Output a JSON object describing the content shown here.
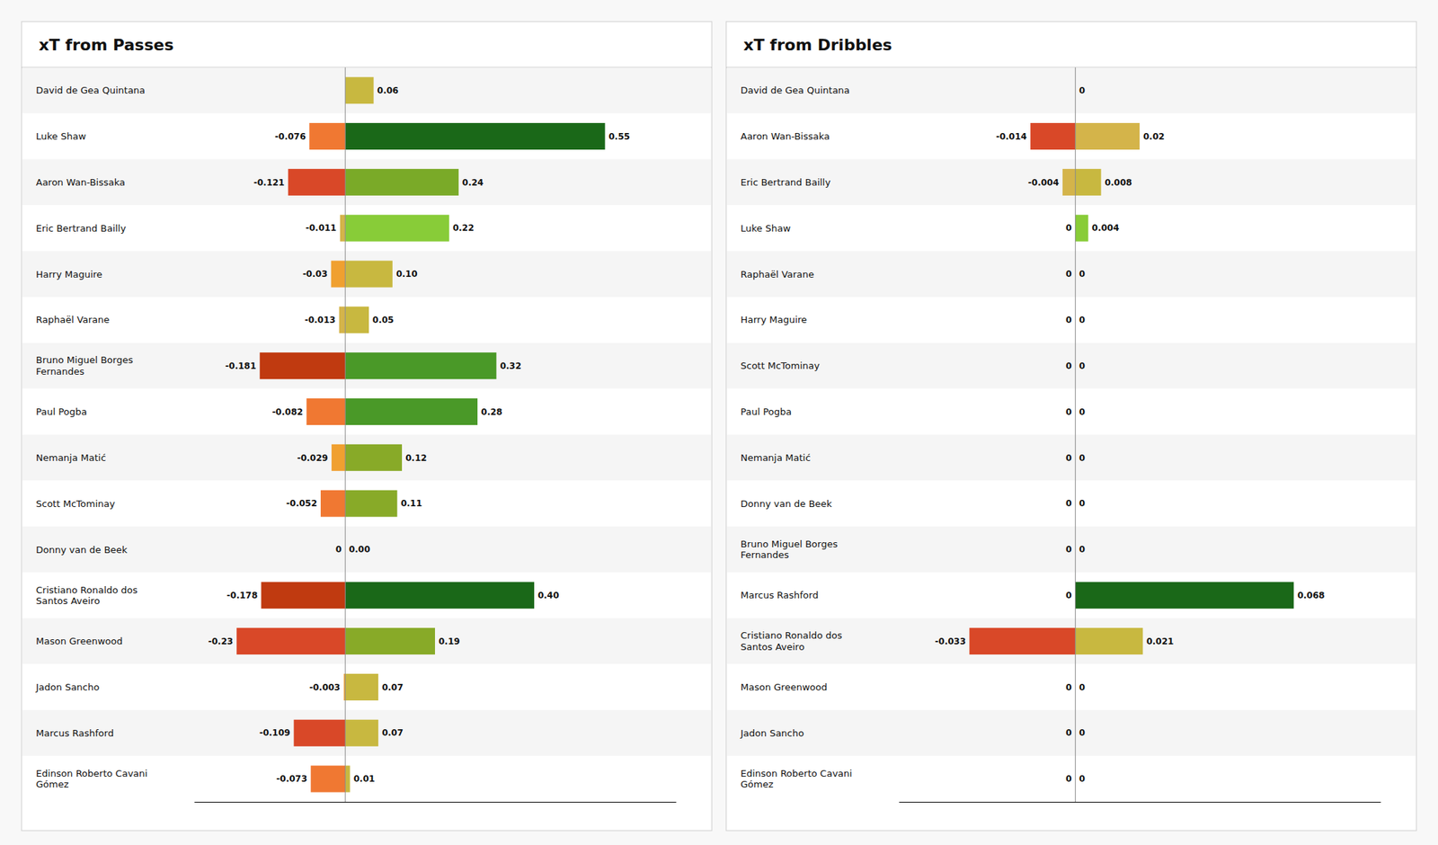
{
  "chart_data": [
    {
      "type": "bar",
      "orientation": "horizontal",
      "stacked": true,
      "title": "xT from Passes",
      "categories": [
        "David de Gea Quintana",
        "Luke Shaw",
        "Aaron Wan-Bissaka",
        "Eric Bertrand  Bailly",
        "Harry  Maguire",
        "Raphaël Varane",
        "Bruno Miguel Borges\nFernandes",
        "Paul Pogba",
        "Nemanja Matić",
        "Scott McTominay",
        "Donny van de Beek",
        "Cristiano Ronaldo dos\nSantos Aveiro",
        "Mason Greenwood",
        "Jadon Sancho",
        "Marcus Rashford",
        "Edinson Roberto Cavani\nGómez"
      ],
      "series": [
        {
          "values": [
            0,
            -0.076,
            -0.121,
            -0.011,
            -0.03,
            -0.013,
            -0.181,
            -0.082,
            -0.029,
            -0.052,
            0,
            -0.178,
            -0.23,
            -0.003,
            -0.109,
            -0.073
          ],
          "value_labels": [
            null,
            "-0.076",
            "-0.121",
            "-0.011",
            "-0.03",
            "-0.013",
            "-0.181",
            "-0.082",
            "-0.029",
            "-0.052",
            "0",
            "-0.178",
            "-0.23",
            "-0.003",
            "-0.109",
            "-0.073"
          ],
          "colors": [
            "#d4b44a",
            "#f07832",
            "#d94828",
            "#d4b44a",
            "#f0a030",
            "#d4b44a",
            "#c03a10",
            "#f07832",
            "#f0a030",
            "#f07832",
            "#f0a030",
            "#c03a10",
            "#d94828",
            "#f0a030",
            "#d94828",
            "#f07832"
          ]
        },
        {
          "values": [
            0.06,
            0.55,
            0.24,
            0.22,
            0.1,
            0.05,
            0.32,
            0.28,
            0.12,
            0.11,
            0,
            0.4,
            0.19,
            0.07,
            0.07,
            0.01
          ],
          "value_labels": [
            "0.06",
            "0.55",
            "0.24",
            "0.22",
            "0.10",
            "0.05",
            "0.32",
            "0.28",
            "0.12",
            "0.11",
            "0.00",
            "0.40",
            "0.19",
            "0.07",
            "0.07",
            "0.01"
          ],
          "colors": [
            "#c8b840",
            "#1a6818",
            "#7aaa28",
            "#88cc38",
            "#c8b840",
            "#c8b840",
            "#4a9928",
            "#4a9928",
            "#88aa28",
            "#88aa28",
            "#c8b840",
            "#1a6818",
            "#88aa28",
            "#c8b840",
            "#c8b840",
            "#c8b840"
          ]
        }
      ],
      "xlim": [
        -0.32,
        0.7
      ],
      "xticks": [],
      "tick_labels": "y",
      "grid": false,
      "data_labels": true
    },
    {
      "type": "bar",
      "orientation": "horizontal",
      "stacked": true,
      "title": "xT from Dribbles",
      "categories": [
        "David de Gea Quintana",
        "Aaron Wan-Bissaka",
        "Eric Bertrand  Bailly",
        "Luke Shaw",
        "Raphaël Varane",
        "Harry  Maguire",
        "Scott McTominay",
        "Paul Pogba",
        "Nemanja Matić",
        "Donny van de Beek",
        "Bruno Miguel Borges\nFernandes",
        "Marcus Rashford",
        "Cristiano Ronaldo dos\nSantos Aveiro",
        "Mason Greenwood",
        "Jadon Sancho",
        "Edinson Roberto Cavani\nGómez"
      ],
      "series": [
        {
          "values": [
            0,
            -0.014,
            -0.004,
            0,
            0,
            0,
            0,
            0,
            0,
            0,
            0,
            0,
            -0.033,
            0,
            0,
            0
          ],
          "value_labels": [
            null,
            "-0.014",
            "-0.004",
            "0",
            "0",
            "0",
            "0",
            "0",
            "0",
            "0",
            "0",
            "0",
            "-0.033",
            "0",
            "0",
            "0"
          ],
          "colors": [
            "#d4b44a",
            "#d94828",
            "#d4b44a",
            "#d4b44a",
            "#d4b44a",
            "#d4b44a",
            "#d4b44a",
            "#d4b44a",
            "#d4b44a",
            "#d4b44a",
            "#d4b44a",
            "#d4b44a",
            "#d94828",
            "#d4b44a",
            "#d4b44a",
            "#d4b44a"
          ]
        },
        {
          "values": [
            0,
            0.02,
            0.008,
            0.004,
            0,
            0,
            0,
            0,
            0,
            0,
            0,
            0.068,
            0.021,
            0,
            0,
            0
          ],
          "value_labels": [
            "0",
            "0.02",
            "0.008",
            "0.004",
            "0",
            "0",
            "0",
            "0",
            "0",
            "0",
            "0",
            "0.068",
            "0.021",
            "0",
            "0",
            "0"
          ],
          "colors": [
            "#d4b44a",
            "#d4b44a",
            "#c8b840",
            "#88cc38",
            "#d4b44a",
            "#d4b44a",
            "#d4b44a",
            "#d4b44a",
            "#d4b44a",
            "#d4b44a",
            "#d4b44a",
            "#1a6818",
            "#c8b840",
            "#d4b44a",
            "#d4b44a",
            "#d4b44a"
          ]
        }
      ],
      "xlim": [
        -0.055,
        0.095
      ],
      "xticks": [],
      "tick_labels": "y",
      "grid": false,
      "data_labels": true
    }
  ]
}
